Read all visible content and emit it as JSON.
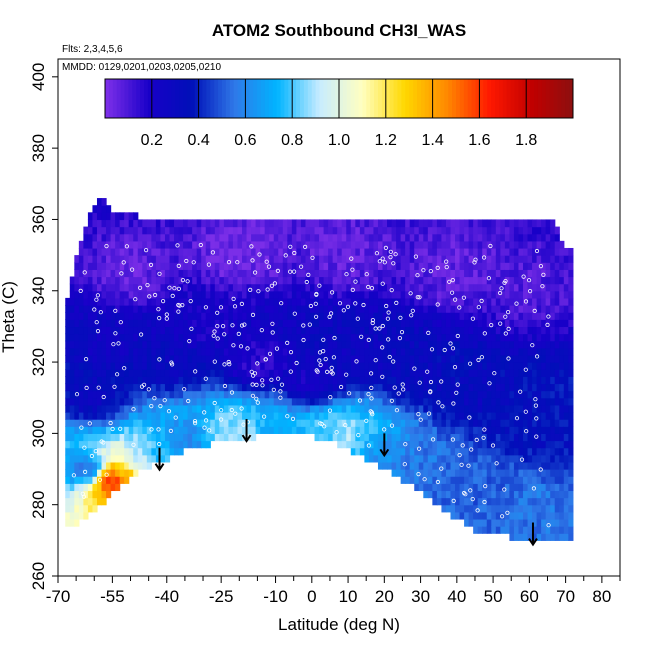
{
  "chart_data": {
    "type": "heatmap",
    "title": "ATOM2 Southbound CH3I_WAS",
    "flights_note": "Flts: 2,3,4,5,6",
    "dates_note": "MMDD: 0129,0201,0203,0205,0210",
    "xlabel": "Latitude (deg N)",
    "ylabel": "Theta (C)",
    "xlim": [
      -70,
      85
    ],
    "ylim": [
      260,
      405
    ],
    "x_ticks": [
      -70,
      -55,
      -40,
      -25,
      -10,
      0,
      10,
      20,
      30,
      40,
      50,
      60,
      70,
      80
    ],
    "x_tick_labels": [
      "-70",
      "-55",
      "-40",
      "-25",
      "-10",
      "0",
      "10",
      "20",
      "30",
      "40",
      "50",
      "60",
      "70",
      "80"
    ],
    "y_ticks": [
      260,
      280,
      300,
      320,
      340,
      360,
      380,
      400
    ],
    "y_tick_labels": [
      "260",
      "280",
      "300",
      "320",
      "340",
      "360",
      "380",
      "400"
    ],
    "colorbar": {
      "range": [
        0,
        2.0
      ],
      "ticks": [
        0.2,
        0.4,
        0.6,
        0.8,
        1.0,
        1.2,
        1.4,
        1.6,
        1.8
      ],
      "tick_labels": [
        "0.2",
        "0.4",
        "0.6",
        "0.8",
        "1.0",
        "1.2",
        "1.4",
        "1.6",
        "1.8"
      ],
      "colors": [
        "#7b2ee8",
        "#1800c8",
        "#0010b8",
        "#2f78e8",
        "#00b4ff",
        "#c8ecff",
        "#ffffc0",
        "#ffd800",
        "#ff8800",
        "#ff1800",
        "#c00000",
        "#8a1010"
      ]
    },
    "upper_boundary": [
      [
        -68,
        335
      ],
      [
        -65,
        350
      ],
      [
        -62,
        360
      ],
      [
        -59,
        366
      ],
      [
        -57,
        367
      ],
      [
        -55,
        362
      ],
      [
        -40,
        360
      ],
      [
        -20,
        360
      ],
      [
        0,
        360
      ],
      [
        20,
        360
      ],
      [
        50,
        360
      ],
      [
        60,
        359
      ],
      [
        67,
        359
      ],
      [
        70,
        352
      ]
    ],
    "lower_boundary": [
      [
        -68,
        275
      ],
      [
        -65,
        274
      ],
      [
        -58,
        280
      ],
      [
        -50,
        288
      ],
      [
        -44,
        291
      ],
      [
        -35,
        295
      ],
      [
        -25,
        298
      ],
      [
        -15,
        299
      ],
      [
        -8,
        301
      ],
      [
        5,
        298
      ],
      [
        15,
        293
      ],
      [
        25,
        287
      ],
      [
        35,
        280
      ],
      [
        40,
        276
      ],
      [
        45,
        273
      ],
      [
        55,
        271
      ],
      [
        62,
        270
      ],
      [
        72,
        270
      ],
      [
        72,
        268
      ]
    ],
    "field": [
      {
        "lat": -62,
        "theta": 290,
        "value": 0.55
      },
      {
        "lat": -55,
        "theta": 287,
        "value": 1.6
      },
      {
        "lat": -52,
        "theta": 289,
        "value": 1.35
      },
      {
        "lat": -48,
        "theta": 292,
        "value": 0.9
      },
      {
        "lat": -42,
        "theta": 294,
        "value": 0.75
      },
      {
        "lat": -35,
        "theta": 298,
        "value": 0.6
      },
      {
        "lat": -22,
        "theta": 300,
        "value": 0.85
      },
      {
        "lat": -18,
        "theta": 299,
        "value": 0.95
      },
      {
        "lat": -12,
        "theta": 301,
        "value": 0.7
      },
      {
        "lat": 5,
        "theta": 300,
        "value": 0.8
      },
      {
        "lat": 10,
        "theta": 300,
        "value": 0.9
      },
      {
        "lat": 15,
        "theta": 299,
        "value": 0.75
      },
      {
        "lat": 20,
        "theta": 296,
        "value": 0.6
      },
      {
        "lat": 30,
        "theta": 292,
        "value": 0.55
      },
      {
        "lat": 40,
        "theta": 288,
        "value": 0.5
      },
      {
        "lat": 50,
        "theta": 284,
        "value": 0.5
      },
      {
        "lat": 60,
        "theta": 280,
        "value": 0.55
      },
      {
        "lat": 65,
        "theta": 300,
        "value": 0.35
      },
      {
        "lat": -60,
        "theta": 310,
        "value": 0.3
      },
      {
        "lat": -55,
        "theta": 325,
        "value": 0.25
      },
      {
        "lat": -40,
        "theta": 320,
        "value": 0.3
      },
      {
        "lat": -30,
        "theta": 330,
        "value": 0.2
      },
      {
        "lat": -15,
        "theta": 320,
        "value": 0.15
      },
      {
        "lat": 0,
        "theta": 315,
        "value": 0.2
      },
      {
        "lat": 15,
        "theta": 320,
        "value": 0.25
      },
      {
        "lat": 30,
        "theta": 315,
        "value": 0.3
      },
      {
        "lat": 45,
        "theta": 310,
        "value": 0.3
      },
      {
        "lat": 55,
        "theta": 305,
        "value": 0.35
      },
      {
        "lat": -50,
        "theta": 345,
        "value": 0.05
      },
      {
        "lat": -20,
        "theta": 350,
        "value": 0.02
      },
      {
        "lat": 10,
        "theta": 350,
        "value": 0.05
      },
      {
        "lat": 40,
        "theta": 345,
        "value": 0.05
      },
      {
        "lat": 60,
        "theta": 340,
        "value": 0.08
      }
    ],
    "arrows": [
      {
        "lat": -42,
        "theta": 296
      },
      {
        "lat": -18,
        "theta": 304
      },
      {
        "lat": 20,
        "theta": 300
      },
      {
        "lat": 61,
        "theta": 275
      }
    ]
  }
}
